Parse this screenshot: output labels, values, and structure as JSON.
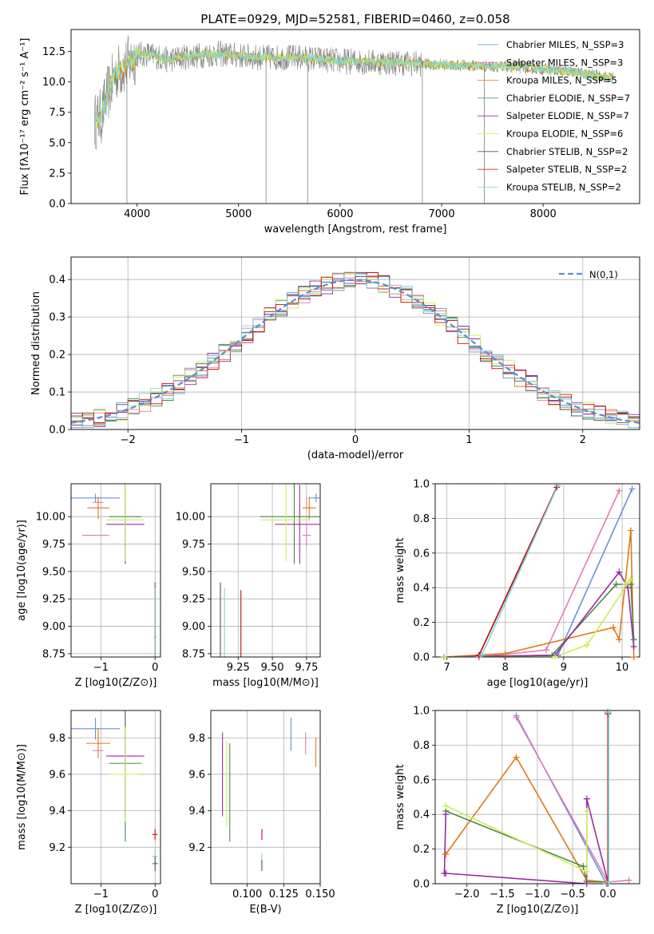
{
  "figure": {
    "title": "PLATE=0929, MJD=52581, FIBERID=0460, z=0.058"
  },
  "colors": {
    "Chabrier MILES": "#6a8fdc",
    "Salpeter MILES": "#e07bb4",
    "Kroupa MILES": "#de7a1a",
    "Chabrier ELODIE": "#4c8a4c",
    "Salpeter ELODIE": "#9a2aa3",
    "Kroupa ELODIE": "#cdee55",
    "Chabrier STELIB": "#555555",
    "Salpeter STELIB": "#c40f0f",
    "Kroupa STELIB": "#7fd6d6"
  },
  "chart_data": [
    {
      "id": "spectrum",
      "type": "line",
      "title": "PLATE=0929, MJD=52581, FIBERID=0460, z=0.058",
      "xlabel": "wavelength [Angstrom, rest frame]",
      "ylabel": "Flux [fλ10⁻¹⁷ erg cm⁻² s⁻¹ A⁻¹]",
      "xlim": [
        3350,
        8950
      ],
      "ylim": [
        0,
        14.3
      ],
      "xticks": [
        "4000",
        "5000",
        "6000",
        "7000",
        "8000"
      ],
      "yticks": [
        "0.0",
        "2.5",
        "5.0",
        "7.5",
        "10.0",
        "12.5"
      ],
      "grid": false,
      "legend_position": "right",
      "legend": [
        "Chabrier MILES, N_SSP=3",
        "Salpeter MILES, N_SSP=3",
        "Kroupa MILES, N_SSP=5",
        "Chabrier ELODIE, N_SSP=7",
        "Salpeter ELODIE, N_SSP=7",
        "Kroupa ELODIE, N_SSP=6",
        "Chabrier STELIB, N_SSP=2",
        "Salpeter STELIB, N_SSP=2",
        "Kroupa STELIB, N_SSP=2"
      ],
      "continuum": {
        "x": [
          3600,
          3650,
          3700,
          3800,
          3900,
          4000,
          4100,
          4300,
          4500,
          4800,
          5200,
          5600,
          6000,
          6500,
          7000,
          7400,
          7800,
          8300,
          8700
        ],
        "y": [
          6.8,
          7.2,
          8.8,
          10.8,
          11.4,
          12.2,
          12.3,
          11.8,
          12.1,
          12.3,
          12.0,
          12.0,
          11.7,
          11.6,
          11.4,
          11.3,
          11.2,
          10.8,
          10.3
        ]
      },
      "absorption_lines": [
        {
          "x": 3900,
          "y": 0.0
        },
        {
          "x": 5270,
          "y": 0.0
        },
        {
          "x": 5680,
          "y": 0.0
        },
        {
          "x": 6810,
          "y": 0.0
        },
        {
          "x": 7420,
          "y": 0.0
        }
      ]
    },
    {
      "id": "residuals",
      "type": "line",
      "xlabel": "(data-model)/error",
      "ylabel": "Normed distribution",
      "xlim": [
        -2.5,
        2.5
      ],
      "ylim": [
        0,
        0.46
      ],
      "xticks": [
        "−2",
        "−1",
        "0",
        "1",
        "2"
      ],
      "yticks": [
        "0.0",
        "0.1",
        "0.2",
        "0.3",
        "0.4"
      ],
      "grid": true,
      "legend_position": "top-right",
      "legend": [
        "N(0,1)"
      ],
      "bin_width": 0.1
    },
    {
      "id": "age-vs-Z",
      "type": "scatter",
      "xlabel": "Z [log10(Z/Z⊙)]",
      "ylabel": "age  [log10(age/yr)]",
      "xlim": [
        -1.55,
        0.1
      ],
      "ylim": [
        8.72,
        10.3
      ],
      "xticks": [
        "−1",
        "0"
      ],
      "yticks": [
        "8.75",
        "9.00",
        "9.25",
        "9.50",
        "9.75",
        "10.00"
      ],
      "grid": true,
      "points": [
        {
          "name": "Chabrier MILES",
          "x": -1.1,
          "xerr": 0.45,
          "y": 10.17,
          "yerr": 0.04
        },
        {
          "name": "Salpeter MILES",
          "x": -1.05,
          "xerr": 0.1,
          "y": 10.13,
          "yerr": 0.05
        },
        {
          "name": "Kroupa MILES",
          "x": -1.05,
          "xerr": 0.2,
          "y": 10.08,
          "yerr": 0.1
        },
        {
          "name": "Chabrier ELODIE",
          "x": -0.55,
          "xerr": 0.3,
          "y": 10.0,
          "yerr": 0.43
        },
        {
          "name": "Salpeter ELODIE",
          "x": -0.55,
          "xerr": 0.35,
          "y": 9.93,
          "yerr": 0.36
        },
        {
          "name": "Kroupa ELODIE",
          "x": -0.55,
          "xerr": 0.35,
          "y": 9.97,
          "yerr": 0.38
        },
        {
          "name": "Chabrier STELIB",
          "x": 0.0,
          "xerr": 0.02,
          "y": 8.9,
          "yerr": 0.5
        },
        {
          "name": "Salpeter STELIB",
          "x": 0.0,
          "xerr": 0.02,
          "y": 8.9,
          "yerr": 0.43
        },
        {
          "name": "Kroupa STELIB",
          "x": 0.0,
          "xerr": 0.02,
          "y": 8.9,
          "yerr": 0.45
        },
        {
          "name": "Salpeter MILES (low)",
          "x": -1.1,
          "xerr": 0.25,
          "y": 9.83,
          "yerr": 0.0
        }
      ]
    },
    {
      "id": "age-vs-mass",
      "type": "scatter",
      "xlabel": "mass [log10(M/M⊙)]",
      "ylabel": "",
      "xlim": [
        9.05,
        9.85
      ],
      "ylim": [
        8.72,
        10.3
      ],
      "xticks": [
        "9.25",
        "9.50",
        "9.75"
      ],
      "yticks": [
        "8.75",
        "9.00",
        "9.25",
        "9.50",
        "9.75",
        "10.00"
      ],
      "grid": true,
      "points": [
        {
          "name": "Chabrier MILES",
          "x": 9.82,
          "xerr": 0.05,
          "y": 10.17,
          "yerr": 0.04
        },
        {
          "name": "Salpeter MILES",
          "x": 9.75,
          "xerr": 0.0,
          "y": 10.13,
          "yerr": 0.05
        },
        {
          "name": "Kroupa MILES",
          "x": 9.77,
          "xerr": 0.05,
          "y": 10.08,
          "yerr": 0.1
        },
        {
          "name": "Chabrier ELODIE",
          "x": 9.66,
          "xerr": 0.25,
          "y": 10.0,
          "yerr": 0.43
        },
        {
          "name": "Salpeter ELODIE",
          "x": 9.7,
          "xerr": 0.18,
          "y": 9.93,
          "yerr": 0.36
        },
        {
          "name": "Kroupa ELODIE",
          "x": 9.6,
          "xerr": 0.18,
          "y": 9.97,
          "yerr": 0.38
        },
        {
          "name": "Chabrier STELIB",
          "x": 9.12,
          "xerr": 0.0,
          "y": 8.9,
          "yerr": 0.5
        },
        {
          "name": "Salpeter STELIB",
          "x": 9.27,
          "xerr": 0.0,
          "y": 8.9,
          "yerr": 0.43
        },
        {
          "name": "Kroupa STELIB",
          "x": 9.15,
          "xerr": 0.0,
          "y": 8.9,
          "yerr": 0.45
        },
        {
          "name": "Salpeter MILES (low)",
          "x": 9.75,
          "xerr": 0.03,
          "y": 9.83,
          "yerr": 0.1
        }
      ]
    },
    {
      "id": "mass-weight-vs-age",
      "type": "line",
      "xlabel": "age  [log10(age/yr)]",
      "ylabel": "mass weight",
      "xlim": [
        6.8,
        10.3
      ],
      "ylim": [
        0,
        1.0
      ],
      "xticks": [
        "7",
        "8",
        "9",
        "10"
      ],
      "yticks": [
        "0.0",
        "0.2",
        "0.4",
        "0.6",
        "0.8",
        "1.0"
      ],
      "grid": true,
      "series": [
        {
          "name": "Chabrier MILES",
          "x": [
            7.55,
            8.9,
            10.17
          ],
          "y": [
            0.0,
            0.01,
            0.97
          ]
        },
        {
          "name": "Salpeter MILES",
          "x": [
            7.55,
            8.7,
            9.95
          ],
          "y": [
            0.0,
            0.04,
            0.96
          ]
        },
        {
          "name": "Kroupa MILES",
          "x": [
            6.95,
            8.0,
            9.85,
            9.95,
            10.15,
            10.2
          ],
          "y": [
            0.0,
            0.02,
            0.17,
            0.1,
            0.73,
            0.0
          ]
        },
        {
          "name": "Chabrier ELODIE",
          "x": [
            6.95,
            8.8,
            9.9,
            10.15,
            10.2
          ],
          "y": [
            0.0,
            0.01,
            0.42,
            0.42,
            0.1
          ]
        },
        {
          "name": "Salpeter ELODIE",
          "x": [
            6.95,
            8.85,
            9.95,
            10.1,
            10.2
          ],
          "y": [
            0.0,
            0.01,
            0.49,
            0.4,
            0.06
          ]
        },
        {
          "name": "Kroupa ELODIE",
          "x": [
            6.95,
            8.85,
            9.4,
            10.15,
            10.05
          ],
          "y": [
            0.0,
            0.0,
            0.07,
            0.45,
            0.42
          ]
        },
        {
          "name": "Chabrier STELIB",
          "x": [
            7.55,
            8.9
          ],
          "y": [
            0.01,
            0.99
          ]
        },
        {
          "name": "Salpeter STELIB",
          "x": [
            7.55,
            8.88
          ],
          "y": [
            0.01,
            0.98
          ]
        },
        {
          "name": "Kroupa STELIB",
          "x": [
            7.6,
            8.9
          ],
          "y": [
            0.01,
            0.99
          ]
        }
      ]
    },
    {
      "id": "mass-vs-Z",
      "type": "scatter",
      "xlabel": "Z [log10(Z/Z⊙)]",
      "ylabel": "mass [log10(M/M⊙)]",
      "xlim": [
        -1.55,
        0.1
      ],
      "ylim": [
        9.0,
        9.95
      ],
      "xticks": [
        "−1",
        "0"
      ],
      "yticks": [
        "9.2",
        "9.4",
        "9.6",
        "9.8"
      ],
      "grid": true,
      "points": [
        {
          "name": "Chabrier MILES",
          "x": -1.1,
          "xerr": 0.45,
          "y": 9.85,
          "yerr": 0.06
        },
        {
          "name": "Kroupa MILES",
          "x": -1.05,
          "xerr": 0.22,
          "y": 9.77,
          "yerr": 0.08
        },
        {
          "name": "Salpeter MILES",
          "x": -1.05,
          "xerr": 0.1,
          "y": 9.73,
          "yerr": 0.0
        },
        {
          "name": "Salpeter ELODIE",
          "x": -0.55,
          "xerr": 0.35,
          "y": 9.7,
          "yerr": 0.33
        },
        {
          "name": "Chabrier ELODIE",
          "x": -0.55,
          "xerr": 0.3,
          "y": 9.66,
          "yerr": 0.43
        },
        {
          "name": "Kroupa ELODIE",
          "x": -0.55,
          "xerr": 0.3,
          "y": 9.6,
          "yerr": 0.26
        },
        {
          "name": "Salpeter STELIB",
          "x": 0.0,
          "xerr": 0.05,
          "y": 9.27,
          "yerr": 0.03
        },
        {
          "name": "Kroupa STELIB",
          "x": 0.0,
          "xerr": 0.05,
          "y": 9.15,
          "yerr": 0.04
        },
        {
          "name": "Chabrier STELIB",
          "x": 0.0,
          "xerr": 0.05,
          "y": 9.11,
          "yerr": 0.04
        }
      ]
    },
    {
      "id": "mass-vs-EBV",
      "type": "scatter",
      "xlabel": "E(B-V)",
      "ylabel": "",
      "xlim": [
        0.075,
        0.15
      ],
      "ylim": [
        9.0,
        9.95
      ],
      "xticks": [
        "0.100",
        "0.125",
        "0.150"
      ],
      "yticks": [
        "9.2",
        "9.4",
        "9.6",
        "9.8"
      ],
      "grid": true,
      "points": [
        {
          "name": "Chabrier MILES",
          "x": 0.13,
          "xerr": 0.0,
          "y": 9.82,
          "yerr": 0.09
        },
        {
          "name": "Salpeter MILES",
          "x": 0.14,
          "xerr": 0.0,
          "y": 9.77,
          "yerr": 0.06
        },
        {
          "name": "Kroupa MILES",
          "x": 0.147,
          "xerr": 0.0,
          "y": 9.72,
          "yerr": 0.08
        },
        {
          "name": "Salpeter ELODIE",
          "x": 0.083,
          "xerr": 0.0,
          "y": 9.6,
          "yerr": 0.23
        },
        {
          "name": "Chabrier ELODIE",
          "x": 0.088,
          "xerr": 0.0,
          "y": 9.5,
          "yerr": 0.27
        },
        {
          "name": "Kroupa ELODIE",
          "x": 0.086,
          "xerr": 0.0,
          "y": 9.55,
          "yerr": 0.23
        },
        {
          "name": "Salpeter STELIB",
          "x": 0.11,
          "xerr": 0.0,
          "y": 9.27,
          "yerr": 0.03
        },
        {
          "name": "Kroupa STELIB",
          "x": 0.11,
          "xerr": 0.0,
          "y": 9.13,
          "yerr": 0.04
        },
        {
          "name": "Chabrier STELIB",
          "x": 0.11,
          "xerr": 0.0,
          "y": 9.1,
          "yerr": 0.03
        }
      ]
    },
    {
      "id": "mass-weight-vs-Z",
      "type": "line",
      "xlabel": "Z [log10(Z/Z⊙)]",
      "ylabel": "mass weight",
      "xlim": [
        -2.45,
        0.45
      ],
      "ylim": [
        0,
        1.0
      ],
      "xticks": [
        "−2.0",
        "−1.5",
        "−1.0",
        "−0.5",
        "0.0"
      ],
      "yticks": [
        "0.0",
        "0.2",
        "0.4",
        "0.6",
        "0.8",
        "1.0"
      ],
      "grid": true,
      "series": [
        {
          "name": "Chabrier MILES",
          "x": [
            -1.3,
            -0.02
          ],
          "y": [
            0.97,
            0.0
          ]
        },
        {
          "name": "Salpeter MILES",
          "x": [
            -1.3,
            0.0,
            0.3
          ],
          "y": [
            0.96,
            0.01,
            0.02
          ]
        },
        {
          "name": "Kroupa MILES",
          "x": [
            -2.3,
            -1.3,
            -0.3,
            -0.02
          ],
          "y": [
            0.17,
            0.73,
            0.02,
            0.01
          ]
        },
        {
          "name": "Chabrier ELODIE",
          "x": [
            -2.3,
            -0.35,
            -0.3,
            0.0
          ],
          "y": [
            0.42,
            0.1,
            0.01,
            0.01
          ]
        },
        {
          "name": "Salpeter ELODIE",
          "x": [
            -2.3,
            -2.32,
            -2.3,
            -0.3,
            -0.3,
            0.0
          ],
          "y": [
            0.4,
            0.06,
            0.06,
            0.0,
            0.49,
            0.01
          ]
        },
        {
          "name": "Kroupa ELODIE",
          "x": [
            -2.3,
            -0.3,
            -0.3
          ],
          "y": [
            0.45,
            0.07,
            0.42
          ]
        },
        {
          "name": "Chabrier STELIB",
          "x": [
            0.0,
            0.0
          ],
          "y": [
            0.01,
            0.99
          ]
        },
        {
          "name": "Salpeter STELIB",
          "x": [
            0.0,
            0.0
          ],
          "y": [
            0.01,
            0.98
          ]
        },
        {
          "name": "Kroupa STELIB",
          "x": [
            0.01,
            0.01
          ],
          "y": [
            0.01,
            0.99
          ]
        }
      ]
    }
  ]
}
